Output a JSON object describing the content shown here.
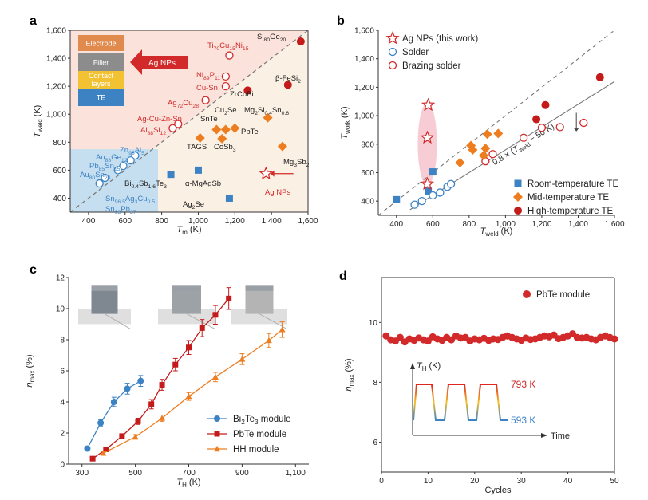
{
  "colors": {
    "red": "#d22a2a",
    "darkred": "#c41a1a",
    "orange": "#ee7d20",
    "blue": "#3d83c4",
    "lightblue": "#c5dff0",
    "lightpink": "#fbe3dc",
    "pink": "#f7c7cf",
    "grey": "#6b6b6b"
  },
  "panels": {
    "a": "a",
    "b": "b",
    "c": "c",
    "d": "d"
  },
  "chart_data": [
    {
      "panel": "a",
      "type": "scatter",
      "xlabel": {
        "main": "T",
        "sub": "m",
        "unit": " (K)"
      },
      "ylabel": {
        "main": "T",
        "sub": "weld",
        "unit": " (K)"
      },
      "xlim": [
        300,
        1600
      ],
      "ylim": [
        300,
        1600
      ],
      "xticks": [
        400,
        600,
        800,
        1000,
        1200,
        1400,
        1600
      ],
      "yticks": [
        400,
        600,
        800,
        1000,
        1200,
        1400,
        1600
      ],
      "xtick_labels": [
        "400",
        "600",
        "800",
        "1,000",
        "1,200",
        "1,400",
        "1,600"
      ],
      "ytick_labels": [
        "400",
        "600",
        "800",
        "1,000",
        "1,200",
        "1,400",
        "1,600"
      ],
      "diagonal": "y = x",
      "points": [
        {
          "x": 1560,
          "y": 1520,
          "m": "circle-fill",
          "c": "darkred",
          "label": "Si80Ge20"
        },
        {
          "x": 1490,
          "y": 1210,
          "m": "circle-fill",
          "c": "darkred",
          "label": "β-FeSi2"
        },
        {
          "x": 1270,
          "y": 1170,
          "m": "circle-fill",
          "c": "darkred",
          "label": "ZrCoBi"
        },
        {
          "x": 1170,
          "y": 1420,
          "m": "circle-open",
          "c": "red",
          "label": "Ti70Cu15Ni15"
        },
        {
          "x": 1150,
          "y": 1270,
          "m": "circle-open",
          "c": "red",
          "label": "Ni89P11"
        },
        {
          "x": 1150,
          "y": 1200,
          "m": "circle-open",
          "c": "red",
          "label": "Cu-Sn"
        },
        {
          "x": 1040,
          "y": 1100,
          "m": "circle-open",
          "c": "red",
          "label": "Ag72Cu28"
        },
        {
          "x": 890,
          "y": 930,
          "m": "circle-open",
          "c": "red",
          "label": "Ag-Cu-Zn-Sn"
        },
        {
          "x": 860,
          "y": 900,
          "m": "circle-open",
          "c": "red",
          "label": "Al88Si12"
        },
        {
          "x": 1010,
          "y": 830,
          "m": "diamond",
          "c": "orange",
          "label": "TAGS"
        },
        {
          "x": 1100,
          "y": 890,
          "m": "diamond",
          "c": "orange",
          "label": "SnTe"
        },
        {
          "x": 1150,
          "y": 890,
          "m": "diamond",
          "c": "orange",
          "label": "Cu2Se"
        },
        {
          "x": 1200,
          "y": 900,
          "m": "diamond",
          "c": "orange",
          "label": "PbTe"
        },
        {
          "x": 1130,
          "y": 825,
          "m": "diamond",
          "c": "orange",
          "label": "CoSb3"
        },
        {
          "x": 1380,
          "y": 975,
          "m": "diamond",
          "c": "orange",
          "label": "Mg2Si0.4Sn0.6"
        },
        {
          "x": 1460,
          "y": 770,
          "m": "diamond",
          "c": "orange",
          "label": "Mg3Sb2"
        },
        {
          "x": 1000,
          "y": 600,
          "m": "square",
          "c": "blue",
          "label": "α-MgAgSb"
        },
        {
          "x": 850,
          "y": 570,
          "m": "square",
          "c": "blue",
          "label": "Bi0.4Sb1.6Te3"
        },
        {
          "x": 1170,
          "y": 400,
          "m": "square",
          "c": "blue",
          "label": "Ag2Se"
        },
        {
          "x": 655,
          "y": 705,
          "m": "circle-open",
          "c": "blue",
          "label": "Zn95Al5"
        },
        {
          "x": 630,
          "y": 670,
          "m": "circle-open",
          "c": "blue",
          "label": "Au88Ge12"
        },
        {
          "x": 590,
          "y": 630,
          "m": "circle-open",
          "c": "blue",
          "label": "Pb85Sn15"
        },
        {
          "x": 560,
          "y": 600,
          "m": "circle-open",
          "c": "blue",
          "label": "Au80Sn20"
        },
        {
          "x": 490,
          "y": 545,
          "m": "circle-open",
          "c": "blue",
          "label": "Sn96.5Ag3Cu0.5"
        },
        {
          "x": 460,
          "y": 505,
          "m": "circle-open",
          "c": "blue",
          "label": "Sn63Pb37"
        },
        {
          "x": 1370,
          "y": 575,
          "m": "star",
          "c": "red",
          "label": ""
        }
      ],
      "labels": {
        "si": "Si",
        "si_s": "80",
        "ge": "Ge",
        "ge_s": "20",
        "fe": "β-FeSi",
        "fe_s": "2",
        "zr": "ZrCoBi",
        "ti": "Ti",
        "ti_s1": "70",
        "ti_m": "Cu",
        "ti_s2": "15",
        "ti_m2": "Ni",
        "ti_s3": "15",
        "ni": "Ni",
        "ni_s": "89",
        "ni_m": "P",
        "ni_s2": "11",
        "cusn": "Cu-Sn",
        "ag": "Ag",
        "ag_s": "72",
        "ag_m": "Cu",
        "ag_s2": "28",
        "agcu": "Ag-Cu-Zn-Sn",
        "al": "Al",
        "al_s": "88",
        "al_m": "Si",
        "al_s2": "12",
        "snte": "SnTe",
        "cu2": "Cu",
        "cu2_s": "2",
        "cu2_m": "Se",
        "mg2": "Mg",
        "mg2_s": "2",
        "mg2_m": "Si",
        "mg2_s2": "0.4",
        "mg2_m2": "Sn",
        "mg2_s3": "0.6",
        "pbte": "PbTe",
        "tags": "TAGS",
        "co": "CoSb",
        "co_s": "3",
        "mg3": "Mg",
        "mg3_s": "3",
        "mg3_m": "Sb",
        "mg3_s2": "2",
        "bi": "Bi",
        "bi_s": "0.4",
        "bi_m": "Sb",
        "bi_s2": "1.6",
        "bi_m2": "Te",
        "bi_s3": "3",
        "mgag": "α-MgAgSb",
        "ag2": "Ag",
        "ag2_s": "2",
        "ag2_m": "Se",
        "agnps": "Ag NPs",
        "zn": "Zn",
        "zn_s": "95",
        "zn_m": "Al",
        "zn_s2": "5",
        "au": "Au",
        "au_s": "88",
        "au_m": "Ge",
        "au_s2": "12",
        "pb": "Pb",
        "pb_s": "85",
        "pb_m": "Sn",
        "pb_s2": "15",
        "au80": "Au",
        "au80_s": "80",
        "au80_m": "Sn",
        "au80_s2": "20",
        "sn96": "Sn",
        "sn96_s": "96.5",
        "sn96_m": "Ag",
        "sn96_s2": "3",
        "sn96_m2": "Cu",
        "sn96_s3": "0.5",
        "sn63": "Sn",
        "sn63_s": "63",
        "sn63_m": "Pb",
        "sn63_s2": "37"
      },
      "inset": {
        "layers": [
          "Electrode",
          "Filler",
          "Contact layers",
          "TE"
        ],
        "contact1": "Contact",
        "contact2": "layers",
        "arrow_label": "Ag NPs"
      }
    },
    {
      "panel": "b",
      "type": "scatter",
      "xlabel": {
        "main": "T",
        "sub": "weld",
        "unit": " (K)"
      },
      "ylabel": {
        "main": "T",
        "sub": "work",
        "unit": " (K)"
      },
      "xlim": [
        300,
        1600
      ],
      "ylim": [
        300,
        1600
      ],
      "xticks": [
        400,
        600,
        800,
        1000,
        1200,
        1400,
        1600
      ],
      "yticks": [
        400,
        600,
        800,
        1000,
        1200,
        1400,
        1600
      ],
      "xtick_labels": [
        "400",
        "600",
        "800",
        "1,000",
        "1,200",
        "1,400",
        "1,600"
      ],
      "ytick_labels": [
        "400",
        "600",
        "800",
        "1,000",
        "1,200",
        "1,400",
        "1,600"
      ],
      "fit_line": "0.8 × (T_weld − 50 K)",
      "fit_text": {
        "a": "0.8 × (",
        "t": "T",
        "sub": "weld",
        "b": " − 50 K)"
      },
      "legend_top": [
        "Ag NPs (this work)",
        "Solder",
        "Brazing solder"
      ],
      "legend_bottom": [
        "Room-temperature TE",
        "Mid-temperature TE",
        "High-temperature TE"
      ],
      "points": [
        {
          "x": 400,
          "y": 410,
          "m": "square",
          "c": "blue"
        },
        {
          "x": 575,
          "y": 470,
          "m": "square",
          "c": "blue"
        },
        {
          "x": 600,
          "y": 605,
          "m": "square",
          "c": "blue"
        },
        {
          "x": 570,
          "y": 520,
          "m": "star",
          "c": "red"
        },
        {
          "x": 570,
          "y": 845,
          "m": "star",
          "c": "red"
        },
        {
          "x": 575,
          "y": 1075,
          "m": "star",
          "c": "red"
        },
        {
          "x": 500,
          "y": 375,
          "m": "circle-open",
          "c": "blue"
        },
        {
          "x": 540,
          "y": 400,
          "m": "circle-open",
          "c": "blue"
        },
        {
          "x": 600,
          "y": 440,
          "m": "circle-open",
          "c": "blue"
        },
        {
          "x": 640,
          "y": 460,
          "m": "circle-open",
          "c": "blue"
        },
        {
          "x": 680,
          "y": 500,
          "m": "circle-open",
          "c": "blue"
        },
        {
          "x": 700,
          "y": 520,
          "m": "circle-open",
          "c": "blue"
        },
        {
          "x": 890,
          "y": 680,
          "m": "circle-open",
          "c": "red"
        },
        {
          "x": 930,
          "y": 730,
          "m": "circle-open",
          "c": "red"
        },
        {
          "x": 1100,
          "y": 845,
          "m": "circle-open",
          "c": "red"
        },
        {
          "x": 1200,
          "y": 915,
          "m": "circle-open",
          "c": "red"
        },
        {
          "x": 1300,
          "y": 920,
          "m": "circle-open",
          "c": "red"
        },
        {
          "x": 1430,
          "y": 950,
          "m": "circle-open",
          "c": "red"
        },
        {
          "x": 750,
          "y": 670,
          "m": "diamond",
          "c": "orange"
        },
        {
          "x": 810,
          "y": 790,
          "m": "diamond",
          "c": "orange"
        },
        {
          "x": 820,
          "y": 760,
          "m": "diamond",
          "c": "orange"
        },
        {
          "x": 880,
          "y": 720,
          "m": "diamond",
          "c": "orange"
        },
        {
          "x": 890,
          "y": 770,
          "m": "diamond",
          "c": "orange"
        },
        {
          "x": 900,
          "y": 870,
          "m": "diamond",
          "c": "orange"
        },
        {
          "x": 960,
          "y": 875,
          "m": "diamond",
          "c": "orange"
        },
        {
          "x": 1170,
          "y": 975,
          "m": "circle-fill",
          "c": "darkred"
        },
        {
          "x": 1220,
          "y": 1075,
          "m": "circle-fill",
          "c": "darkred"
        },
        {
          "x": 1520,
          "y": 1270,
          "m": "circle-fill",
          "c": "darkred"
        }
      ]
    },
    {
      "panel": "c",
      "type": "line",
      "xlabel": {
        "main": "T",
        "sub": "H",
        "unit": " (K)"
      },
      "ylabel": {
        "main": "η",
        "sub": "max",
        "unit": " (%)"
      },
      "xlim": [
        250,
        1150
      ],
      "ylim": [
        0,
        12
      ],
      "xticks": [
        300,
        500,
        700,
        900,
        1100
      ],
      "xtick_labels": [
        "300",
        "500",
        "700",
        "900",
        "1,100"
      ],
      "yticks": [
        0,
        2,
        4,
        6,
        8,
        10,
        12
      ],
      "series": [
        {
          "name": "Bi",
          "sub1": "2",
          "mid": "Te",
          "sub2": "3",
          "tail": " module",
          "c": "blue",
          "m": "circle-fill",
          "x": [
            320,
            370,
            420,
            470,
            520
          ],
          "y": [
            1.0,
            2.65,
            4.0,
            4.85,
            5.35
          ],
          "err": [
            0.1,
            0.2,
            0.3,
            0.35,
            0.35
          ]
        },
        {
          "name": "PbTe module",
          "c": "darkred",
          "m": "square",
          "x": [
            340,
            390,
            450,
            510,
            560,
            600,
            650,
            700,
            750,
            800,
            850
          ],
          "y": [
            0.35,
            0.95,
            1.8,
            2.75,
            3.85,
            5.1,
            6.4,
            7.5,
            8.75,
            9.6,
            10.65
          ],
          "err": [
            0.1,
            0.12,
            0.15,
            0.2,
            0.3,
            0.35,
            0.4,
            0.45,
            0.55,
            0.6,
            0.7
          ]
        },
        {
          "name": "HH module",
          "c": "orange",
          "m": "triangle",
          "x": [
            380,
            500,
            600,
            700,
            800,
            900,
            1000,
            1050
          ],
          "y": [
            0.7,
            1.75,
            2.95,
            4.35,
            5.6,
            6.75,
            7.95,
            8.65
          ],
          "err": [
            0.1,
            0.15,
            0.2,
            0.25,
            0.3,
            0.35,
            0.45,
            0.5
          ]
        }
      ]
    },
    {
      "panel": "d",
      "type": "scatter",
      "xlabel": "Cycles",
      "ylabel": {
        "main": "η",
        "sub": "max",
        "unit": " (%)"
      },
      "xlim": [
        0,
        50
      ],
      "ylim": [
        5,
        11.5
      ],
      "xticks": [
        0,
        10,
        20,
        30,
        40,
        50
      ],
      "yticks": [
        6,
        8,
        10
      ],
      "legend": "PbTe module",
      "series_y": [
        9.55,
        9.42,
        9.38,
        9.5,
        9.35,
        9.45,
        9.4,
        9.48,
        9.42,
        9.38,
        9.52,
        9.45,
        9.4,
        9.5,
        9.42,
        9.55,
        9.48,
        9.5,
        9.38,
        9.45,
        9.42,
        9.47,
        9.4,
        9.45,
        9.43,
        9.5,
        9.55,
        9.5,
        9.45,
        9.4,
        9.48,
        9.43,
        9.45,
        9.5,
        9.55,
        9.52,
        9.58,
        9.46,
        9.5,
        9.55,
        9.62,
        9.5,
        9.48,
        9.5,
        9.45,
        9.42,
        9.5,
        9.55,
        9.5,
        9.45
      ],
      "inset": {
        "ylabel": "T",
        "ylabel_sub": "H",
        "ylabel_unit": " (K)",
        "high": "793 K",
        "low": "593 K",
        "time": "Time",
        "high_value": 793,
        "low_value": 593
      }
    }
  ]
}
